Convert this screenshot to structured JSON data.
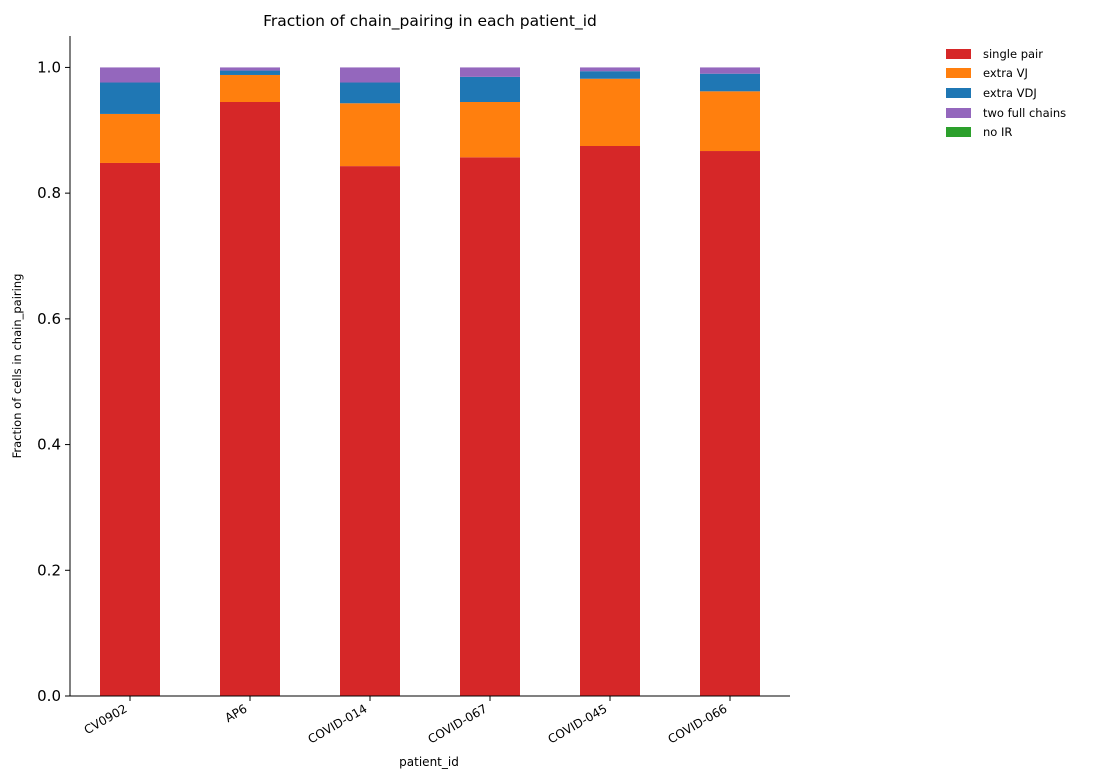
{
  "chart_data": {
    "type": "bar",
    "stacked": true,
    "title": "Fraction of chain_pairing in each patient_id",
    "xlabel": "patient_id",
    "ylabel": "Fraction of cells in chain_pairing",
    "ylim": [
      0,
      1.05
    ],
    "yticks": [
      "0.0",
      "0.2",
      "0.4",
      "0.6",
      "0.8",
      "1.0"
    ],
    "categories": [
      "CV0902",
      "AP6",
      "COVID-014",
      "COVID-067",
      "COVID-045",
      "COVID-066"
    ],
    "series": [
      {
        "name": "single pair",
        "color": "#d62728",
        "values": [
          0.848,
          0.945,
          0.843,
          0.857,
          0.875,
          0.867
        ]
      },
      {
        "name": "extra VJ",
        "color": "#ff7f0e",
        "values": [
          0.078,
          0.043,
          0.1,
          0.088,
          0.107,
          0.095
        ]
      },
      {
        "name": "extra VDJ",
        "color": "#1f77b4",
        "values": [
          0.05,
          0.007,
          0.033,
          0.04,
          0.012,
          0.028
        ]
      },
      {
        "name": "two full chains",
        "color": "#9467bd",
        "values": [
          0.024,
          0.005,
          0.024,
          0.015,
          0.006,
          0.01
        ]
      },
      {
        "name": "no IR",
        "color": "#2ca02c",
        "values": [
          0,
          0,
          0,
          0,
          0,
          0
        ]
      }
    ],
    "legend_position": "upper-right-outside",
    "grid": false
  }
}
